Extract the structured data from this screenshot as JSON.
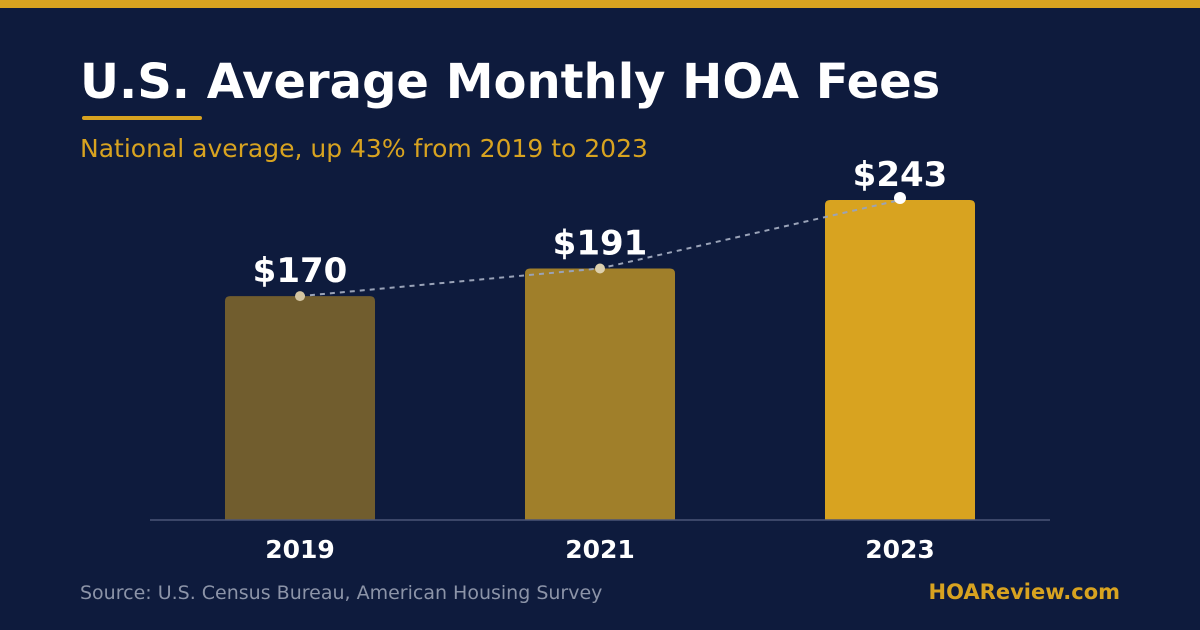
{
  "header": {
    "title": "U.S. Average Monthly HOA Fees",
    "subtitle": "National average, up 43% from 2019 to 2023"
  },
  "footer": {
    "source": "Source: U.S. Census Bureau, American Housing Survey",
    "brand": "HOAReview.com"
  },
  "colors": {
    "background": "#0e1b3d",
    "accent": "#d8a320",
    "bar_colors": [
      "#715d2e",
      "#a07f2a",
      "#d8a320"
    ],
    "trend_line": "#9aa3b8",
    "baseline": "#4a5577",
    "text": "#ffffff",
    "muted_text": "#8c94a8"
  },
  "chart_data": {
    "type": "bar",
    "title": "U.S. Average Monthly HOA Fees",
    "subtitle": "National average, up 43% from 2019 to 2023",
    "categories": [
      "2019",
      "2021",
      "2023"
    ],
    "values": [
      170,
      191,
      243
    ],
    "value_labels": [
      "$170",
      "$191",
      "$243"
    ],
    "ylim": [
      0,
      243
    ],
    "grid": false,
    "legend": "none",
    "trend_line": true
  }
}
